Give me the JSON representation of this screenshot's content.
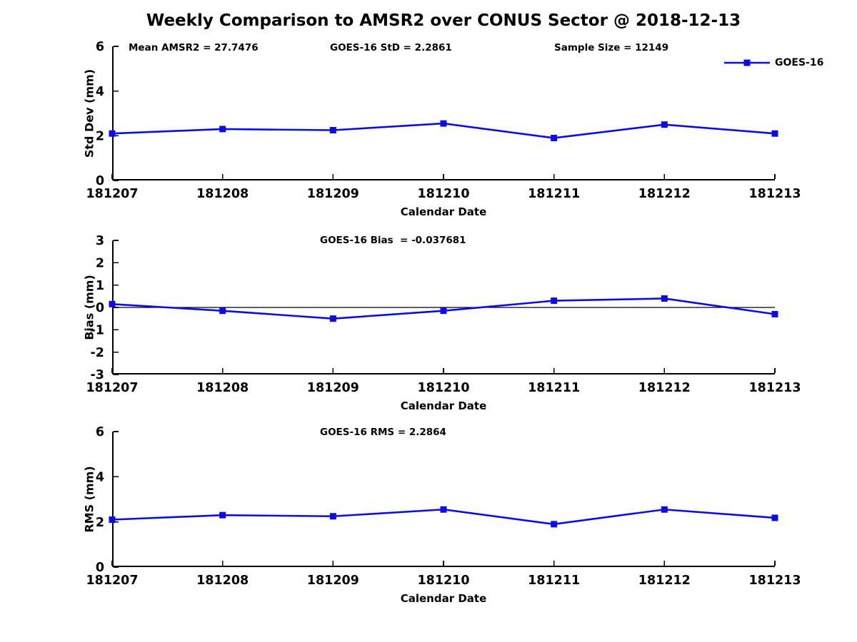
{
  "title": "Weekly Comparison to AMSR2 over CONUS Sector @ 2018-12-13",
  "legend": {
    "label": "GOES-16"
  },
  "colors": {
    "series": "#0d0de1",
    "axis": "#000000"
  },
  "chart_data": [
    {
      "type": "line",
      "name": "std-dev-panel",
      "annotations": {
        "mean": "Mean AMSR2 = 27.7476",
        "std": "GOES-16 StD = 2.2861",
        "sample": "Sample Size = 12149"
      },
      "categories": [
        "181207",
        "181208",
        "181209",
        "181210",
        "181211",
        "181212",
        "181213"
      ],
      "series": [
        {
          "name": "GOES-16",
          "values": [
            2.1,
            2.3,
            2.25,
            2.55,
            1.9,
            2.5,
            2.1
          ]
        }
      ],
      "xlabel": "Calendar Date",
      "ylabel": "Std Dev (mm)",
      "ylim": [
        0,
        6
      ],
      "yticks": [
        0,
        2,
        4,
        6
      ],
      "zero_line": false,
      "grid": false,
      "legend_position": "top-right",
      "marker": "square"
    },
    {
      "type": "line",
      "name": "bias-panel",
      "annotation": "GOES-16 Bias  = -0.037681",
      "categories": [
        "181207",
        "181208",
        "181209",
        "181210",
        "181211",
        "181212",
        "181213"
      ],
      "series": [
        {
          "name": "GOES-16",
          "values": [
            0.15,
            -0.15,
            -0.5,
            -0.15,
            0.3,
            0.4,
            -0.3
          ]
        }
      ],
      "xlabel": "Calendar Date",
      "ylabel": "Bias (mm)",
      "ylim": [
        -3,
        3
      ],
      "yticks": [
        -3,
        -2,
        -1,
        0,
        1,
        2,
        3
      ],
      "zero_line": true,
      "grid": false,
      "marker": "square"
    },
    {
      "type": "line",
      "name": "rms-panel",
      "annotation": "GOES-16 RMS = 2.2864",
      "categories": [
        "181207",
        "181208",
        "181209",
        "181210",
        "181211",
        "181212",
        "181213"
      ],
      "series": [
        {
          "name": "GOES-16",
          "values": [
            2.1,
            2.3,
            2.25,
            2.55,
            1.9,
            2.55,
            2.18
          ]
        }
      ],
      "xlabel": "Calendar Date",
      "ylabel": "RMS (mm)",
      "ylim": [
        0,
        6
      ],
      "yticks": [
        0,
        2,
        4,
        6
      ],
      "zero_line": false,
      "grid": false,
      "marker": "square"
    }
  ]
}
